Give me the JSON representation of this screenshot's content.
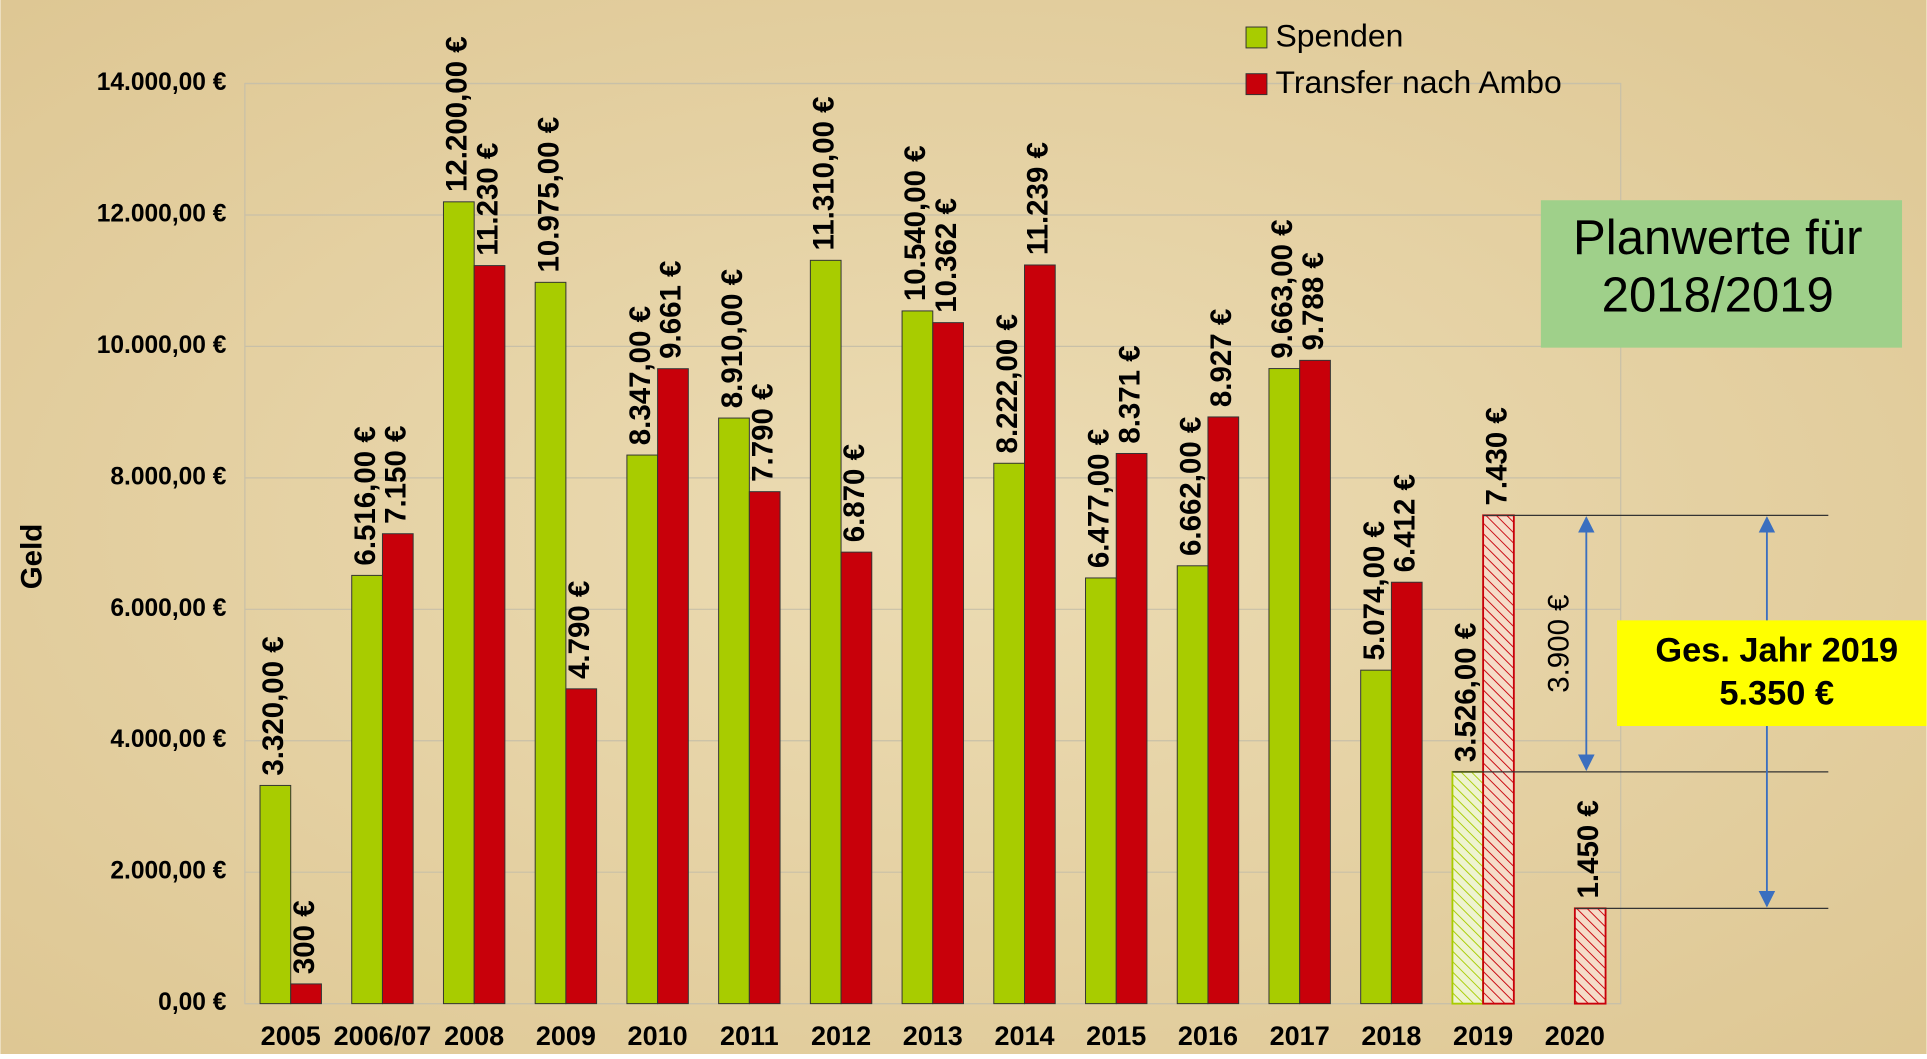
{
  "chart_data": {
    "type": "bar",
    "y_label": "Geld",
    "categories": [
      "2005",
      "2006/07",
      "2008",
      "2009",
      "2010",
      "2011",
      "2012",
      "2013",
      "2014",
      "2015",
      "2016",
      "2017",
      "2018",
      "2019",
      "2020"
    ],
    "series": [
      {
        "name": "Spenden",
        "color": "#a8cc00",
        "values": [
          3320,
          6516,
          12200,
          10975,
          8347,
          8910,
          11310,
          10540,
          8222,
          6477,
          6662,
          9663,
          5074,
          3526,
          null
        ],
        "value_labels": [
          "3.320,00 €",
          "6.516,00 €",
          "12.200,00 €",
          "10.975,00 €",
          "8.347,00 €",
          "8.910,00 €",
          "11.310,00 €",
          "10.540,00 €",
          "8.222,00 €",
          "6.477,00 €",
          "6.662,00 €",
          "9.663,00 €",
          "5.074,00 €",
          "3.526,00 €",
          null
        ],
        "hatched": [
          false,
          false,
          false,
          false,
          false,
          false,
          false,
          false,
          false,
          false,
          false,
          false,
          false,
          true,
          false
        ]
      },
      {
        "name": "Transfer nach Ambo",
        "color": "#c8000a",
        "values": [
          300,
          7150,
          11230,
          4790,
          9661,
          7790,
          6870,
          10362,
          11239,
          8371,
          8927,
          9788,
          6412,
          7430,
          1450
        ],
        "value_labels": [
          "300 €",
          "7.150 €",
          "11.230 €",
          "4.790 €",
          "9.661 €",
          "7.790 €",
          "6.870 €",
          "10.362 €",
          "11.239 €",
          "8.371 €",
          "8.927 €",
          "9.788 €",
          "6.412 €",
          "7.430 €",
          "1.450 €"
        ],
        "hatched": [
          false,
          false,
          false,
          false,
          false,
          false,
          false,
          false,
          false,
          false,
          false,
          false,
          false,
          true,
          true
        ]
      }
    ],
    "ylim": [
      0,
      14000
    ],
    "yticks": [
      {
        "value": 0,
        "label": "0,00 €"
      },
      {
        "value": 2000,
        "label": "2.000,00 €"
      },
      {
        "value": 4000,
        "label": "4.000,00 €"
      },
      {
        "value": 6000,
        "label": "6.000,00 €"
      },
      {
        "value": 8000,
        "label": "8.000,00 €"
      },
      {
        "value": 10000,
        "label": "10.000,00 €"
      },
      {
        "value": 12000,
        "label": "12.000,00 €"
      },
      {
        "value": 14000,
        "label": "14.000,00 €"
      }
    ],
    "grid": true,
    "legend": "top-right",
    "annotations": {
      "plan_box": [
        "Planwerte für",
        "2018/2019"
      ],
      "difference": "3.900 €",
      "total_box": [
        "Ges. Jahr 2019",
        "5.350 €"
      ]
    }
  }
}
